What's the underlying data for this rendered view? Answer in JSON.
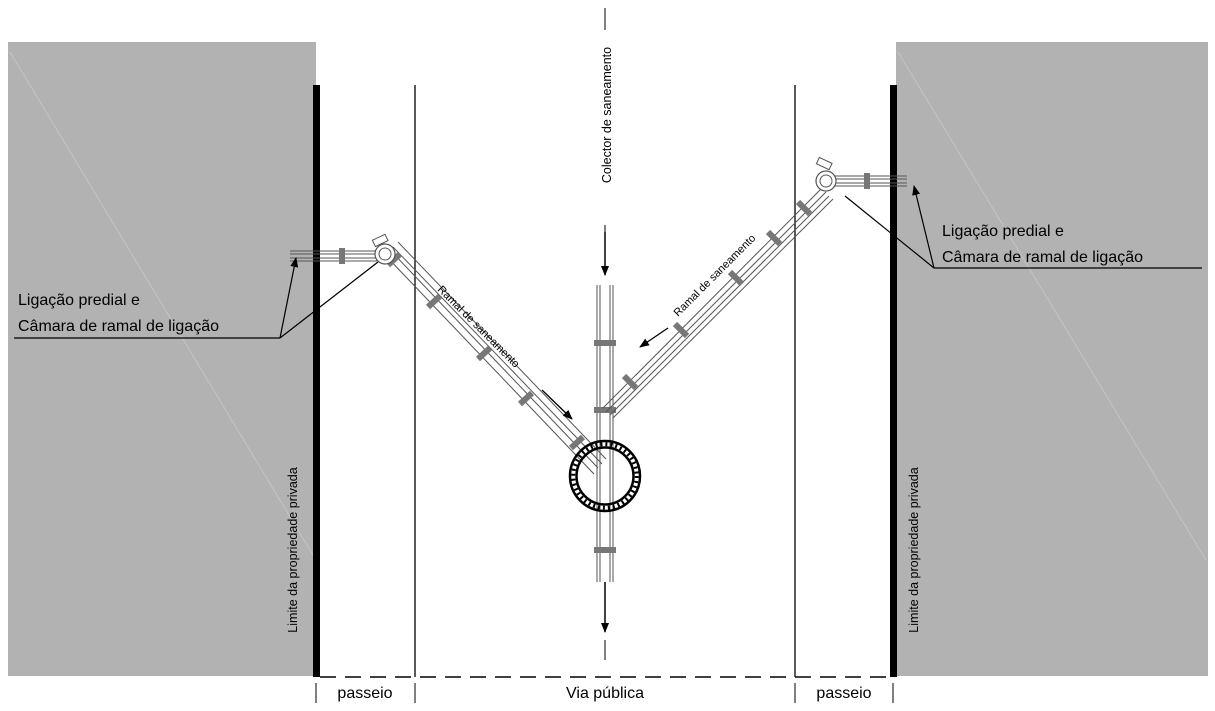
{
  "labels": {
    "collector": "Colector de saneamento",
    "ramal_left": "Ramal de saneamento",
    "ramal_right": "Ramal de saneamento",
    "ligacao_left_line1": "Ligação predial e",
    "ligacao_left_line2": "Câmara de ramal de ligação",
    "ligacao_right_line1": "Ligação predial e",
    "ligacao_right_line2": "Câmara de ramal de ligação",
    "limite_left": "Limite da propriedade privada",
    "limite_right": "Limite da propriedade privada",
    "passeio_left": "passeio",
    "via_publica": "Via pública",
    "passeio_right": "passeio"
  },
  "colors": {
    "property_fill": "#b2b2b2",
    "pipe_stroke": "#555555",
    "line": "#000000"
  }
}
